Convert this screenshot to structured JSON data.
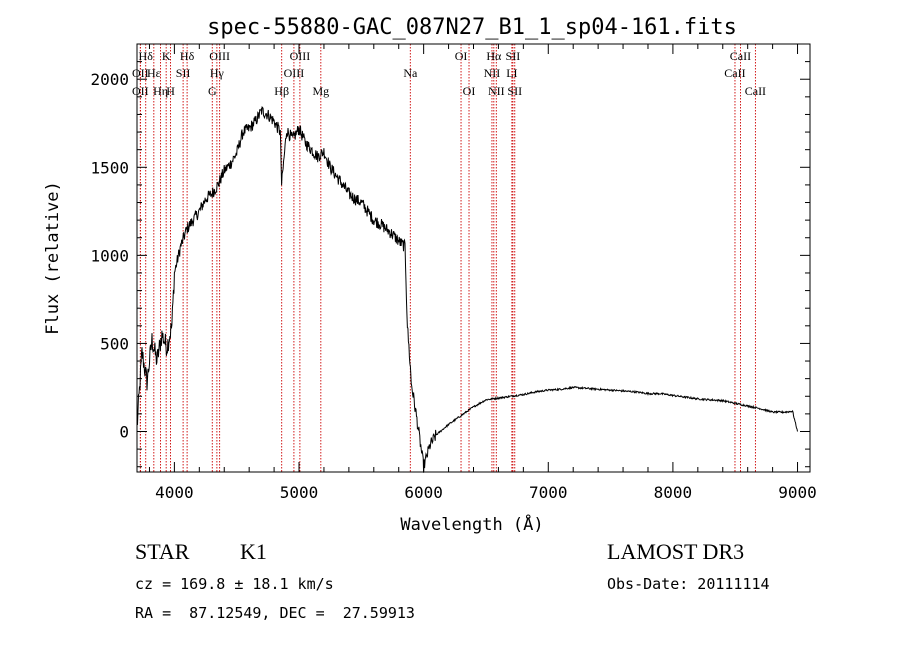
{
  "chart_data": {
    "type": "line",
    "title": "spec-55880-GAC_087N27_B1_1_sp04-161.fits",
    "xlabel": "Wavelength (Å)",
    "ylabel": "Flux (relative)",
    "xlim": [
      3700,
      9100
    ],
    "ylim": [
      -230,
      2200
    ],
    "xticks": [
      4000,
      5000,
      6000,
      7000,
      8000,
      9000
    ],
    "xtick_labels": [
      "4000",
      "5000",
      "6000",
      "7000",
      "8000",
      "9000"
    ],
    "yticks": [
      0,
      500,
      1000,
      1500,
      2000
    ],
    "ytick_labels": [
      "0",
      "500",
      "1000",
      "1500",
      "2000"
    ],
    "series": [
      {
        "name": "spectrum",
        "color": "#000000",
        "x": [
          3700,
          3740,
          3780,
          3820,
          3860,
          3900,
          3940,
          3980,
          4000,
          4050,
          4100,
          4150,
          4200,
          4250,
          4300,
          4350,
          4400,
          4450,
          4500,
          4550,
          4600,
          4650,
          4700,
          4750,
          4800,
          4850,
          4860,
          4900,
          4950,
          5000,
          5050,
          5100,
          5150,
          5200,
          5250,
          5300,
          5350,
          5400,
          5450,
          5500,
          5550,
          5600,
          5650,
          5700,
          5750,
          5800,
          5850,
          5870,
          5890,
          5900,
          5950,
          6000,
          6050,
          6100,
          6200,
          6300,
          6400,
          6500,
          6600,
          6700,
          6800,
          6900,
          7000,
          7100,
          7200,
          7300,
          7400,
          7500,
          7600,
          7700,
          7800,
          7900,
          8000,
          8100,
          8200,
          8300,
          8400,
          8500,
          8600,
          8700,
          8800,
          8900,
          8960,
          9000
        ],
        "y": [
          20,
          450,
          280,
          520,
          400,
          550,
          480,
          600,
          900,
          1050,
          1150,
          1200,
          1250,
          1320,
          1350,
          1400,
          1480,
          1520,
          1580,
          1700,
          1720,
          1760,
          1820,
          1800,
          1760,
          1700,
          1400,
          1710,
          1660,
          1720,
          1640,
          1600,
          1560,
          1590,
          1500,
          1450,
          1400,
          1350,
          1320,
          1300,
          1250,
          1200,
          1180,
          1150,
          1120,
          1080,
          1050,
          600,
          400,
          280,
          50,
          -200,
          -80,
          -20,
          40,
          90,
          140,
          180,
          190,
          200,
          210,
          225,
          235,
          240,
          250,
          245,
          240,
          235,
          230,
          225,
          215,
          215,
          205,
          195,
          185,
          180,
          175,
          160,
          145,
          130,
          110,
          110,
          115,
          0
        ]
      }
    ],
    "lines": [
      {
        "label": "Hδ",
        "x": 3770,
        "row": 0
      },
      {
        "label": "OII",
        "x": 3727,
        "row": 1
      },
      {
        "label": "OII",
        "x": 3727,
        "row": 2
      },
      {
        "label": "Hε",
        "x": 3835,
        "row": 1
      },
      {
        "label": "Hη",
        "x": 3889,
        "row": 2
      },
      {
        "label": "K",
        "x": 3934,
        "row": 0
      },
      {
        "label": "H",
        "x": 3969,
        "row": 2
      },
      {
        "label": "SII",
        "x": 4070,
        "row": 1
      },
      {
        "label": "Hδ",
        "x": 4102,
        "row": 0
      },
      {
        "label": "OIII",
        "x": 4363,
        "row": 0
      },
      {
        "label": "Hγ",
        "x": 4341,
        "row": 1
      },
      {
        "label": "G",
        "x": 4304,
        "row": 2
      },
      {
        "label": "Hβ",
        "x": 4861,
        "row": 2
      },
      {
        "label": "OIII",
        "x": 4959,
        "row": 1
      },
      {
        "label": "OIII",
        "x": 5007,
        "row": 0
      },
      {
        "label": "Mg",
        "x": 5175,
        "row": 2
      },
      {
        "label": "Na",
        "x": 5893,
        "row": 1
      },
      {
        "label": "OI",
        "x": 6300,
        "row": 0
      },
      {
        "label": "OI",
        "x": 6364,
        "row": 2
      },
      {
        "label": "NII",
        "x": 6548,
        "row": 1
      },
      {
        "label": "Hα",
        "x": 6563,
        "row": 0
      },
      {
        "label": "NII",
        "x": 6583,
        "row": 2
      },
      {
        "label": "LI",
        "x": 6708,
        "row": 1
      },
      {
        "label": "SII",
        "x": 6716,
        "row": 0
      },
      {
        "label": "SII",
        "x": 6731,
        "row": 2
      },
      {
        "label": "CaII",
        "x": 8498,
        "row": 1
      },
      {
        "label": "CaII",
        "x": 8542,
        "row": 0
      },
      {
        "label": "CaII",
        "x": 8662,
        "row": 2
      }
    ],
    "line_color": "#cc0000"
  },
  "info": {
    "class_label": "STAR",
    "subclass_label": "K1",
    "survey": "LAMOST DR3",
    "cz": "cz = 169.8 ± 18.1 km/s",
    "obs_date": "Obs-Date: 20111114",
    "coords": "RA =  87.12549, DEC =  27.59913"
  }
}
